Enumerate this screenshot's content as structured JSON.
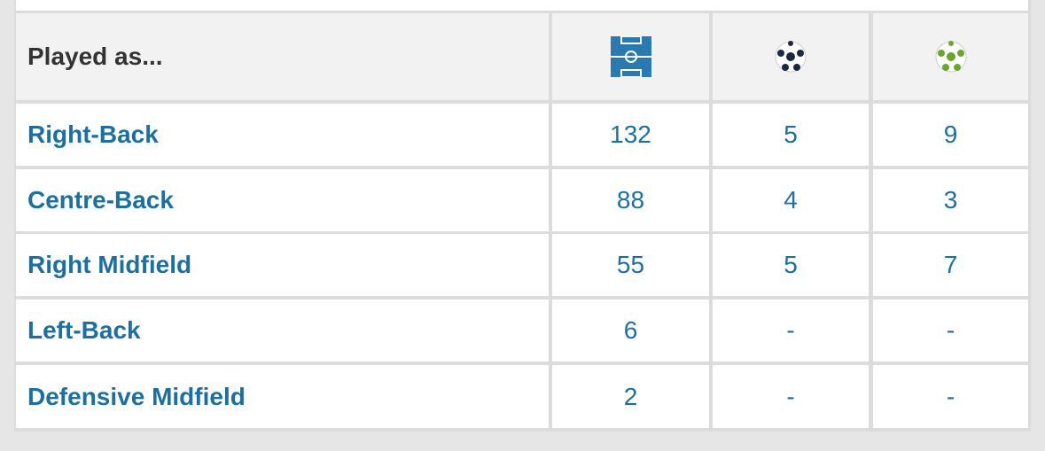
{
  "header": {
    "title": "Played as..."
  },
  "table": {
    "rows": [
      [
        "Right-Back",
        132,
        5,
        9
      ],
      [
        "Centre-Back",
        88,
        4,
        3
      ],
      [
        "Right Midfield",
        55,
        5,
        7
      ],
      [
        "Left-Back",
        6,
        "-",
        "-"
      ],
      [
        "Defensive Midfield",
        2,
        "-",
        "-"
      ]
    ]
  }
}
